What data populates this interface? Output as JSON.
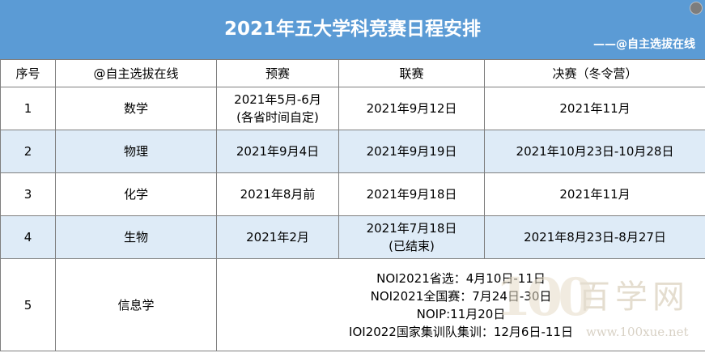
{
  "header": {
    "title": "2021年五大学科竞赛日程安排",
    "subtitle": "——@自主选拔在线"
  },
  "table": {
    "columns": [
      "序号",
      "@自主选拔在线",
      "预赛",
      "联赛",
      "决赛（冬令营）"
    ],
    "rows": [
      {
        "no": "1",
        "subject": "数学",
        "prelim": [
          "2021年5月-6月",
          "(各省时间自定)"
        ],
        "league": [
          "2021年9月12日"
        ],
        "final": "2021年11月"
      },
      {
        "no": "2",
        "subject": "物理",
        "prelim": [
          "2021年9月4日"
        ],
        "league": [
          "2021年9月19日"
        ],
        "final": "2021年10月23日-10月28日"
      },
      {
        "no": "3",
        "subject": "化学",
        "prelim": [
          "2021年8月前"
        ],
        "league": [
          "2021年9月18日"
        ],
        "final": "2021年11月"
      },
      {
        "no": "4",
        "subject": "生物",
        "prelim": [
          "2021年2月"
        ],
        "league": [
          "2021年7月18日",
          "(已结束)"
        ],
        "final": "2021年8月23日-8月27日"
      },
      {
        "no": "5",
        "subject": "信息学",
        "schedule": [
          "NOI2021省选：4月10日-11日",
          "NOI2021全国赛：7月24日-30日",
          "NOIP:11月20日",
          "IOI2022国家集训队集训：12月6日-11日"
        ]
      }
    ]
  },
  "watermark": {
    "logo_number": "100",
    "name": "百学网",
    "url": "www.100xue.net"
  },
  "colors": {
    "header_bg": "#5b9bd5",
    "alt_row_bg": "#deebf7",
    "border": "#7f7f7f"
  }
}
